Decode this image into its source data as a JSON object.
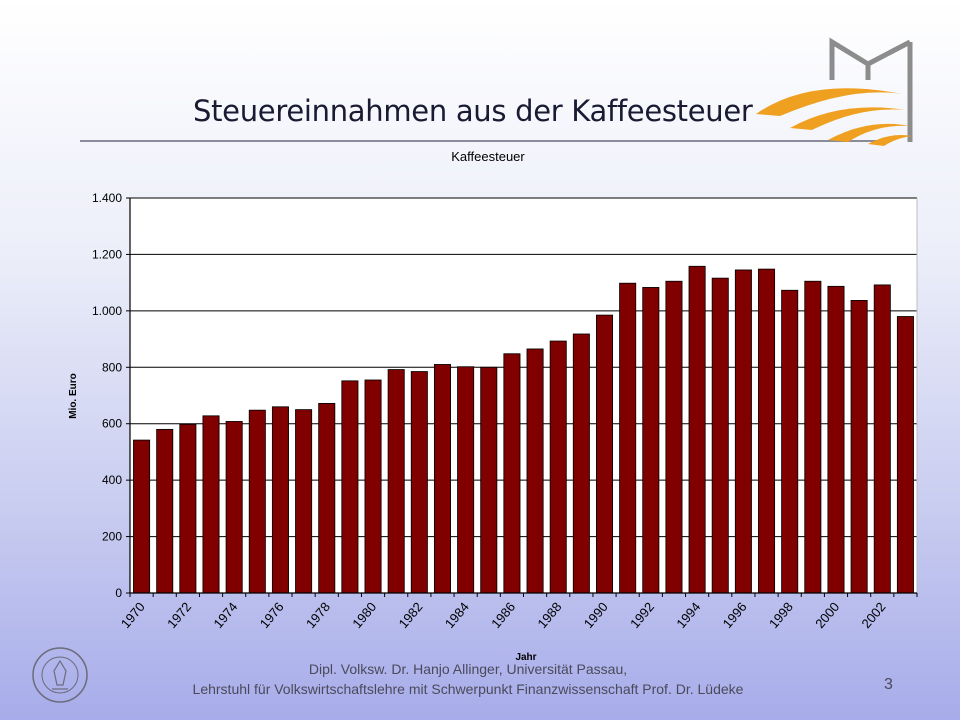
{
  "slide": {
    "title": "Steuereinnahmen aus der Kaffeesteuer",
    "footer_line1": "Dipl. Volksw. Dr. Hanjo Allinger, Universität Passau,",
    "footer_line2": "Lehrstuhl für Volkswirtschaftslehre mit Schwerpunkt Finanzwissenschaft Prof. Dr. Lüdeke",
    "page_number": "3",
    "seal_text": "UNIVERSITAS PATAVIENSIS"
  },
  "colors": {
    "bar": "#800000",
    "grid": "#000000",
    "logo_orange": "#f0a020",
    "logo_gray": "#8c8c8c"
  },
  "chart_data": {
    "type": "bar",
    "title": "Kaffeesteuer",
    "xlabel": "Jahr",
    "ylabel": "Mio. Euro",
    "ylim": [
      0,
      1400
    ],
    "yticks": [
      0,
      200,
      400,
      600,
      800,
      1000,
      1200,
      1400
    ],
    "ytick_labels": [
      "0",
      "200",
      "400",
      "600",
      "800",
      "1.000",
      "1.200",
      "1.400"
    ],
    "grid": true,
    "legend": "none",
    "categories": [
      "1970",
      "1971",
      "1972",
      "1973",
      "1974",
      "1975",
      "1976",
      "1977",
      "1978",
      "1979",
      "1980",
      "1981",
      "1982",
      "1983",
      "1984",
      "1985",
      "1986",
      "1987",
      "1988",
      "1989",
      "1990",
      "1991",
      "1992",
      "1993",
      "1994",
      "1995",
      "1996",
      "1997",
      "1998",
      "1999",
      "2000",
      "2001",
      "2002",
      "2003"
    ],
    "xtick_labels": [
      "1970",
      "",
      "1972",
      "",
      "1974",
      "",
      "1976",
      "",
      "1978",
      "",
      "1980",
      "",
      "1982",
      "",
      "1984",
      "",
      "1986",
      "",
      "1988",
      "",
      "1990",
      "",
      "1992",
      "",
      "1994",
      "",
      "1996",
      "",
      "1998",
      "",
      "2000",
      "",
      "2002",
      ""
    ],
    "values": [
      542,
      580,
      598,
      628,
      608,
      648,
      660,
      650,
      672,
      752,
      755,
      792,
      785,
      810,
      802,
      800,
      848,
      865,
      893,
      918,
      985,
      1098,
      1083,
      1105,
      1158,
      1116,
      1145,
      1148,
      1073,
      1105,
      1087,
      1037,
      1092,
      980
    ]
  }
}
